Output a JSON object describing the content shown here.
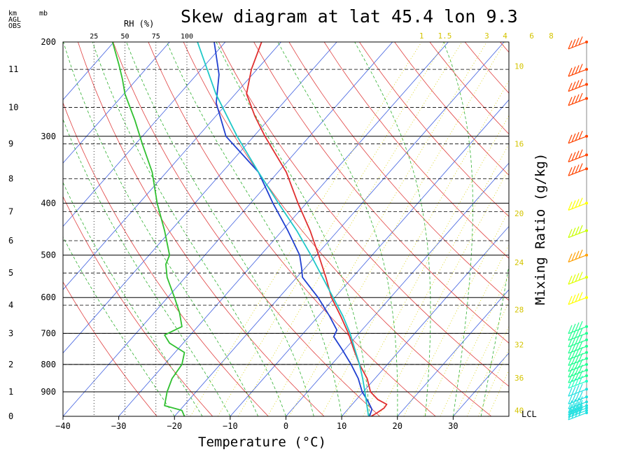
{
  "chart_data": {
    "type": "line",
    "title": "Skew diagram at lat 45.4 lon 9.3",
    "xlabel": "Temperature (°C)",
    "right_label": "Mixing Ratio (g/kg)",
    "corner_labels": {
      "km": "km",
      "agl": "AGL",
      "obs": "OBS",
      "mb": "mb",
      "rh": "RH (%)"
    },
    "lcl_label": "LCL",
    "x_ticks": [
      "−40",
      "−30",
      "−20",
      "−10",
      "0",
      "10",
      "20",
      "30"
    ],
    "x_tick_values": [
      -40,
      -30,
      -20,
      -10,
      0,
      10,
      20,
      30
    ],
    "xlim": [
      -40,
      40
    ],
    "ylim_hPa": [
      1000,
      200
    ],
    "y_scale": "log-pressure",
    "pressure_ticks": [
      "200",
      "300",
      "400",
      "500",
      "600",
      "700",
      "800",
      "900"
    ],
    "pressure_tick_values": [
      200,
      300,
      400,
      500,
      600,
      700,
      800,
      900
    ],
    "height_ticks": [
      "0",
      "1",
      "2",
      "3",
      "4",
      "5",
      "6",
      "7",
      "8",
      "9",
      "10",
      "11"
    ],
    "height_tick_pressures": [
      1000,
      900,
      800,
      700,
      620,
      540,
      470,
      415,
      360,
      310,
      265,
      225
    ],
    "rh_ticks": [
      "25",
      "50",
      "75",
      "100"
    ],
    "rh_tick_values": [
      25,
      50,
      75,
      100
    ],
    "mixing_ratio_top_labels": [
      "1",
      "1.5",
      "3",
      "4",
      "6",
      "8"
    ],
    "mixing_ratio_top_values": [
      1,
      1.5,
      3,
      4,
      6,
      8
    ],
    "mixing_ratio_side_labels": [
      "10",
      "16",
      "20",
      "24",
      "28",
      "32",
      "36",
      "40"
    ],
    "mixing_ratio_side_values": [
      10,
      16,
      20,
      24,
      28,
      32,
      36,
      40
    ],
    "series": [
      {
        "name": "Temperature",
        "color": "#e03030",
        "points": [
          {
            "p": 1000,
            "t": 15.3
          },
          {
            "p": 985,
            "t": 15.8
          },
          {
            "p": 965,
            "t": 16.3
          },
          {
            "p": 950,
            "t": 16.2
          },
          {
            "p": 930,
            "t": 13.8
          },
          {
            "p": 900,
            "t": 11.3
          },
          {
            "p": 850,
            "t": 8.6
          },
          {
            "p": 800,
            "t": 5.0
          },
          {
            "p": 750,
            "t": 1.6
          },
          {
            "p": 700,
            "t": -1.9
          },
          {
            "p": 650,
            "t": -6.0
          },
          {
            "p": 600,
            "t": -10.6
          },
          {
            "p": 550,
            "t": -14.8
          },
          {
            "p": 500,
            "t": -19.6
          },
          {
            "p": 450,
            "t": -25.0
          },
          {
            "p": 400,
            "t": -31.5
          },
          {
            "p": 350,
            "t": -38.5
          },
          {
            "p": 300,
            "t": -48.0
          },
          {
            "p": 275,
            "t": -53.0
          },
          {
            "p": 250,
            "t": -58.0
          },
          {
            "p": 225,
            "t": -61.0
          },
          {
            "p": 200,
            "t": -63.5
          }
        ]
      },
      {
        "name": "Dewpoint",
        "color": "#2040d0",
        "points": [
          {
            "p": 1000,
            "t": 15.0
          },
          {
            "p": 970,
            "t": 14.3
          },
          {
            "p": 940,
            "t": 12.5
          },
          {
            "p": 900,
            "t": 9.8
          },
          {
            "p": 850,
            "t": 7.0
          },
          {
            "p": 800,
            "t": 3.5
          },
          {
            "p": 750,
            "t": -0.5
          },
          {
            "p": 710,
            "t": -4.0
          },
          {
            "p": 690,
            "t": -4.5
          },
          {
            "p": 650,
            "t": -8.0
          },
          {
            "p": 600,
            "t": -13.0
          },
          {
            "p": 550,
            "t": -19.0
          },
          {
            "p": 530,
            "t": -20.5
          },
          {
            "p": 500,
            "t": -23.0
          },
          {
            "p": 450,
            "t": -29.0
          },
          {
            "p": 400,
            "t": -36.0
          },
          {
            "p": 350,
            "t": -43.5
          },
          {
            "p": 300,
            "t": -55.0
          },
          {
            "p": 260,
            "t": -62.0
          },
          {
            "p": 230,
            "t": -66.0
          },
          {
            "p": 200,
            "t": -72.0
          }
        ]
      },
      {
        "name": "Parcel",
        "color": "#20c8c8",
        "points": [
          {
            "p": 1000,
            "t": 15.0
          },
          {
            "p": 995,
            "t": 14.6
          },
          {
            "p": 900,
            "t": 10.3
          },
          {
            "p": 850,
            "t": 7.8
          },
          {
            "p": 800,
            "t": 5.0
          },
          {
            "p": 750,
            "t": 1.8
          },
          {
            "p": 700,
            "t": -1.6
          },
          {
            "p": 650,
            "t": -5.6
          },
          {
            "p": 600,
            "t": -10.3
          },
          {
            "p": 550,
            "t": -15.4
          },
          {
            "p": 500,
            "t": -21.0
          },
          {
            "p": 450,
            "t": -27.4
          },
          {
            "p": 400,
            "t": -35.0
          },
          {
            "p": 350,
            "t": -43.5
          },
          {
            "p": 300,
            "t": -53.0
          },
          {
            "p": 250,
            "t": -63.5
          },
          {
            "p": 200,
            "t": -75.0
          }
        ]
      },
      {
        "name": "Relative Humidity",
        "color": "#30c030",
        "unit": "%",
        "points": [
          {
            "p": 1000,
            "rh": 98
          },
          {
            "p": 975,
            "rh": 96
          },
          {
            "p": 955,
            "rh": 82
          },
          {
            "p": 900,
            "rh": 84
          },
          {
            "p": 850,
            "rh": 88
          },
          {
            "p": 800,
            "rh": 96
          },
          {
            "p": 760,
            "rh": 98
          },
          {
            "p": 730,
            "rh": 86
          },
          {
            "p": 705,
            "rh": 82
          },
          {
            "p": 680,
            "rh": 96
          },
          {
            "p": 640,
            "rh": 94
          },
          {
            "p": 600,
            "rh": 90
          },
          {
            "p": 550,
            "rh": 84
          },
          {
            "p": 520,
            "rh": 83
          },
          {
            "p": 500,
            "rh": 86
          },
          {
            "p": 450,
            "rh": 82
          },
          {
            "p": 400,
            "rh": 76
          },
          {
            "p": 350,
            "rh": 72
          },
          {
            "p": 310,
            "rh": 64
          },
          {
            "p": 280,
            "rh": 58
          },
          {
            "p": 250,
            "rh": 50
          },
          {
            "p": 235,
            "rh": 48
          },
          {
            "p": 220,
            "rh": 45
          },
          {
            "p": 200,
            "rh": 40
          }
        ]
      }
    ],
    "wind_barbs": [
      {
        "p": 200,
        "color": "#ff4400"
      },
      {
        "p": 225,
        "color": "#ff4400"
      },
      {
        "p": 240,
        "color": "#ff4400"
      },
      {
        "p": 255,
        "color": "#ff4400"
      },
      {
        "p": 300,
        "color": "#ff4400"
      },
      {
        "p": 325,
        "color": "#ff4400"
      },
      {
        "p": 345,
        "color": "#ff4400"
      },
      {
        "p": 400,
        "color": "#ffff00"
      },
      {
        "p": 450,
        "color": "#c8ff00"
      },
      {
        "p": 500,
        "color": "#ffa000"
      },
      {
        "p": 550,
        "color": "#e0ff00"
      },
      {
        "p": 600,
        "color": "#ffff00"
      },
      {
        "p": 680,
        "color": "#20ff90"
      },
      {
        "p": 700,
        "color": "#20ff90"
      },
      {
        "p": 720,
        "color": "#20ff90"
      },
      {
        "p": 740,
        "color": "#20ff90"
      },
      {
        "p": 760,
        "color": "#20ff90"
      },
      {
        "p": 780,
        "color": "#20ff90"
      },
      {
        "p": 800,
        "color": "#20ff90"
      },
      {
        "p": 820,
        "color": "#20ff90"
      },
      {
        "p": 840,
        "color": "#20ff90"
      },
      {
        "p": 860,
        "color": "#20ffc8"
      },
      {
        "p": 890,
        "color": "#20e0e0"
      },
      {
        "p": 920,
        "color": "#20e0e0"
      },
      {
        "p": 940,
        "color": "#20e0e0"
      },
      {
        "p": 955,
        "color": "#20e0e0"
      },
      {
        "p": 965,
        "color": "#20e0e0"
      },
      {
        "p": 975,
        "color": "#20e0e0"
      },
      {
        "p": 985,
        "color": "#20e0e0"
      }
    ]
  }
}
